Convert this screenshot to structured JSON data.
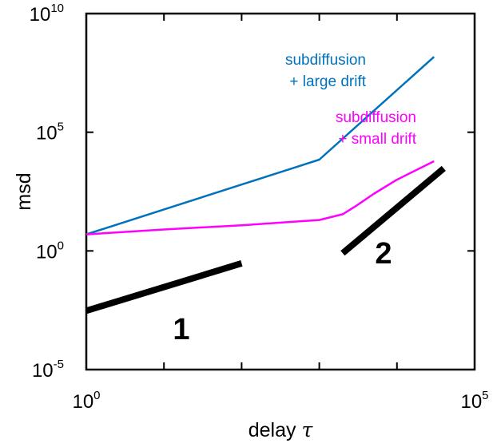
{
  "chart_data": {
    "type": "line",
    "x_scale": "log",
    "y_scale": "log",
    "xlabel": "delay",
    "xlabel_symbol": "τ",
    "ylabel": "msd",
    "xlim": [
      1,
      100000
    ],
    "ylim": [
      1e-05,
      10000000000
    ],
    "x_ticks": [
      1,
      10,
      100,
      1000,
      10000,
      100000
    ],
    "y_ticks": [
      1e-05,
      1,
      100000,
      10000000000
    ],
    "x_tick_labels": [
      {
        "value": 1,
        "base": "10",
        "exp": "0"
      },
      {
        "value": 100000,
        "base": "10",
        "exp": "5"
      }
    ],
    "y_tick_labels": [
      {
        "value": 1e-05,
        "base": "10",
        "exp": "-5"
      },
      {
        "value": 1,
        "base": "10",
        "exp": "0"
      },
      {
        "value": 100000,
        "base": "10",
        "exp": "5"
      },
      {
        "value": 10000000000,
        "base": "10",
        "exp": "10"
      }
    ],
    "grid": false,
    "series": [
      {
        "color": "#0072BD",
        "label_lines": [
          "subdiffusion",
          "+ large drift"
        ],
        "x": [
          1,
          1000,
          30000
        ],
        "y": [
          5,
          7000,
          150000000
        ]
      },
      {
        "color": "#FF00FF",
        "label_lines": [
          "subdiffusion",
          "+ small drift"
        ],
        "x": [
          1,
          10,
          100,
          1000,
          2000,
          3000,
          5000,
          10000,
          30000
        ],
        "y": [
          5,
          8,
          12,
          20,
          35,
          80,
          250,
          1000,
          6000
        ]
      }
    ],
    "guide_lines": [
      {
        "label": "1",
        "color": "#000000",
        "x": [
          1,
          100
        ],
        "y": [
          0.003,
          0.3
        ]
      },
      {
        "label": "2",
        "color": "#000000",
        "x": [
          2000,
          40000
        ],
        "y": [
          0.8,
          3000
        ]
      }
    ]
  }
}
